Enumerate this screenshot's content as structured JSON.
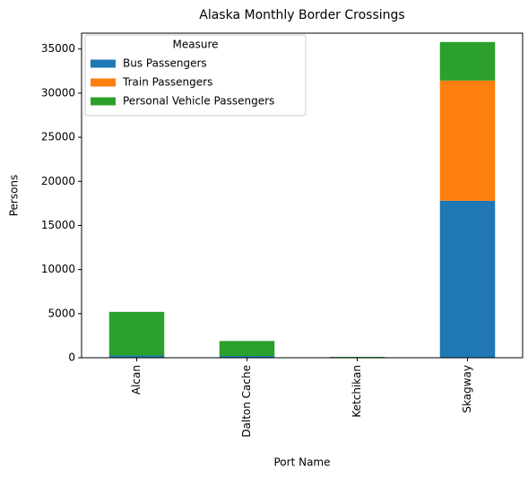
{
  "chart_data": {
    "type": "stacked_bar",
    "title": "Alaska Monthly Border Crossings",
    "x_label": "Port Name",
    "y_label": "Persons",
    "categories": [
      "Alcan",
      "Dalton Cache",
      "Ketchikan",
      "Skagway"
    ],
    "series": [
      {
        "name": "Bus Passengers",
        "color": "#1f77b4",
        "values": [
          250,
          200,
          0,
          17800
        ]
      },
      {
        "name": "Train Passengers",
        "color": "#ff7f0e",
        "values": [
          0,
          0,
          0,
          13630
        ]
      },
      {
        "name": "Personal Vehicle Passengers",
        "color": "#2ca02c",
        "values": [
          4950,
          1700,
          100,
          4370
        ]
      }
    ],
    "legend_title": "Measure",
    "legend": "upper left",
    "ylim": [
      0,
      36800
    ],
    "yticks": [
      0,
      5000,
      10000,
      15000,
      20000,
      25000,
      30000,
      35000
    ]
  }
}
